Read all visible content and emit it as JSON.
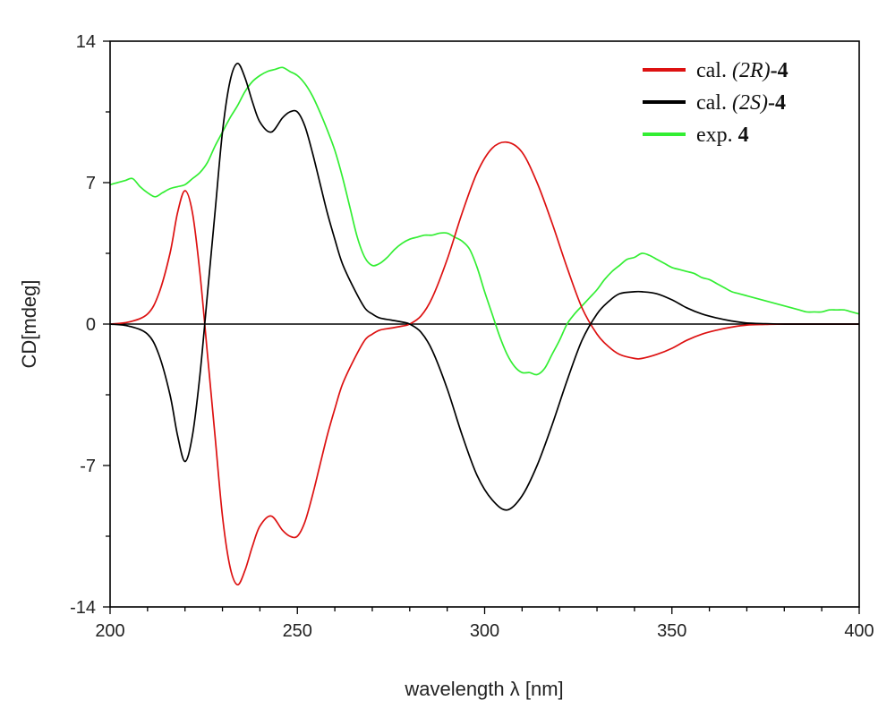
{
  "chart_data": {
    "type": "line",
    "xlabel": "wavelength λ [nm]",
    "ylabel": "CD[mdeg]",
    "xlim": [
      200,
      400
    ],
    "ylim": [
      -14,
      14
    ],
    "x_ticks": [
      200,
      250,
      300,
      350,
      400
    ],
    "y_ticks": [
      -14,
      -7,
      0,
      7,
      14
    ],
    "x_tick_labels": [
      "200",
      "250",
      "300",
      "350",
      "400"
    ],
    "y_tick_labels": [
      "-14",
      "-7",
      "0",
      "7",
      "14"
    ],
    "grid": false,
    "zero_line": true,
    "legend_position": "top-right",
    "series": [
      {
        "name": "cal. (2R)-4",
        "legend_prefix": "cal. ",
        "legend_italic": "(2R)",
        "legend_bold": "-4",
        "color": "#dd1111",
        "x": [
          200,
          205,
          210,
          213,
          216,
          218,
          220,
          222,
          224,
          226,
          228,
          230,
          232,
          234,
          236,
          238,
          240,
          243,
          246,
          248,
          250,
          252,
          254,
          256,
          258,
          260,
          262,
          265,
          268,
          270,
          272,
          275,
          278,
          280,
          283,
          286,
          290,
          294,
          298,
          302,
          306,
          310,
          314,
          318,
          322,
          326,
          330,
          333,
          336,
          340,
          342,
          346,
          350,
          354,
          358,
          362,
          366,
          370,
          375,
          380,
          390,
          400
        ],
        "y": [
          0,
          0.1,
          0.5,
          1.5,
          3.5,
          5.5,
          6.6,
          5.5,
          2.5,
          -1.5,
          -5.5,
          -9.5,
          -12.0,
          -12.9,
          -12.2,
          -11.0,
          -10.0,
          -9.5,
          -10.2,
          -10.5,
          -10.5,
          -9.8,
          -8.5,
          -7.0,
          -5.5,
          -4.2,
          -3.0,
          -1.8,
          -0.8,
          -0.5,
          -0.3,
          -0.2,
          -0.1,
          0,
          0.4,
          1.3,
          3.2,
          5.5,
          7.5,
          8.7,
          9.0,
          8.5,
          7.0,
          5.0,
          2.8,
          0.8,
          -0.5,
          -1.1,
          -1.5,
          -1.7,
          -1.7,
          -1.5,
          -1.2,
          -0.8,
          -0.5,
          -0.3,
          -0.15,
          -0.05,
          -0.02,
          0,
          0,
          0
        ]
      },
      {
        "name": "cal. (2S)-4",
        "legend_prefix": "cal. ",
        "legend_italic": "(2S)",
        "legend_bold": "-4",
        "color": "#000000",
        "x": [
          200,
          205,
          210,
          213,
          216,
          218,
          220,
          222,
          224,
          226,
          228,
          230,
          232,
          234,
          236,
          238,
          240,
          243,
          246,
          248,
          250,
          252,
          254,
          256,
          258,
          260,
          262,
          265,
          268,
          270,
          272,
          275,
          278,
          280,
          283,
          286,
          290,
          294,
          298,
          302,
          306,
          310,
          314,
          318,
          322,
          326,
          330,
          333,
          336,
          340,
          342,
          346,
          350,
          354,
          358,
          362,
          366,
          370,
          375,
          380,
          390,
          400
        ],
        "y": [
          0,
          -0.1,
          -0.5,
          -1.5,
          -3.5,
          -5.5,
          -6.8,
          -5.5,
          -2.5,
          1.5,
          5.5,
          9.5,
          12.0,
          12.9,
          12.2,
          11.0,
          10.0,
          9.5,
          10.2,
          10.5,
          10.5,
          9.8,
          8.5,
          7.0,
          5.5,
          4.2,
          3.0,
          1.8,
          0.8,
          0.5,
          0.3,
          0.2,
          0.1,
          0,
          -0.4,
          -1.3,
          -3.2,
          -5.5,
          -7.5,
          -8.7,
          -9.2,
          -8.5,
          -7.0,
          -5.0,
          -2.8,
          -0.8,
          0.5,
          1.1,
          1.5,
          1.6,
          1.6,
          1.5,
          1.2,
          0.8,
          0.5,
          0.3,
          0.15,
          0.05,
          0.02,
          0,
          0,
          0
        ]
      },
      {
        "name": "exp. 4",
        "legend_prefix": "exp. ",
        "legend_italic": "",
        "legend_bold": "4",
        "color": "#33ee33",
        "x": [
          200,
          202,
          204,
          206,
          208,
          210,
          212,
          214,
          216,
          218,
          220,
          222,
          224,
          226,
          228,
          230,
          232,
          234,
          236,
          238,
          240,
          242,
          244,
          246,
          248,
          250,
          252,
          254,
          256,
          258,
          260,
          262,
          264,
          266,
          268,
          270,
          272,
          274,
          276,
          278,
          280,
          282,
          284,
          286,
          288,
          290,
          292,
          294,
          296,
          298,
          300,
          302,
          304,
          306,
          308,
          310,
          312,
          314,
          316,
          318,
          320,
          322,
          324,
          326,
          328,
          330,
          332,
          334,
          336,
          338,
          340,
          342,
          344,
          346,
          348,
          350,
          352,
          354,
          356,
          358,
          360,
          362,
          364,
          366,
          368,
          370,
          372,
          374,
          376,
          378,
          380,
          382,
          384,
          386,
          388,
          390,
          392,
          394,
          396,
          398,
          400
        ],
        "y": [
          6.9,
          7.0,
          7.1,
          7.2,
          6.8,
          6.5,
          6.3,
          6.5,
          6.7,
          6.8,
          6.9,
          7.2,
          7.5,
          8.0,
          8.8,
          9.5,
          10.2,
          10.8,
          11.5,
          12.0,
          12.3,
          12.5,
          12.6,
          12.7,
          12.5,
          12.3,
          11.9,
          11.3,
          10.5,
          9.6,
          8.6,
          7.3,
          5.8,
          4.3,
          3.3,
          2.9,
          3.0,
          3.3,
          3.7,
          4.0,
          4.2,
          4.3,
          4.4,
          4.4,
          4.5,
          4.5,
          4.3,
          4.1,
          3.7,
          2.8,
          1.6,
          0.5,
          -0.6,
          -1.5,
          -2.1,
          -2.4,
          -2.4,
          -2.5,
          -2.2,
          -1.5,
          -0.8,
          0.0,
          0.5,
          0.9,
          1.3,
          1.7,
          2.2,
          2.6,
          2.9,
          3.2,
          3.3,
          3.5,
          3.4,
          3.2,
          3.0,
          2.8,
          2.7,
          2.6,
          2.5,
          2.3,
          2.2,
          2.0,
          1.8,
          1.6,
          1.5,
          1.4,
          1.3,
          1.2,
          1.1,
          1.0,
          0.9,
          0.8,
          0.7,
          0.6,
          0.6,
          0.6,
          0.7,
          0.7,
          0.7,
          0.6,
          0.5
        ]
      }
    ]
  }
}
